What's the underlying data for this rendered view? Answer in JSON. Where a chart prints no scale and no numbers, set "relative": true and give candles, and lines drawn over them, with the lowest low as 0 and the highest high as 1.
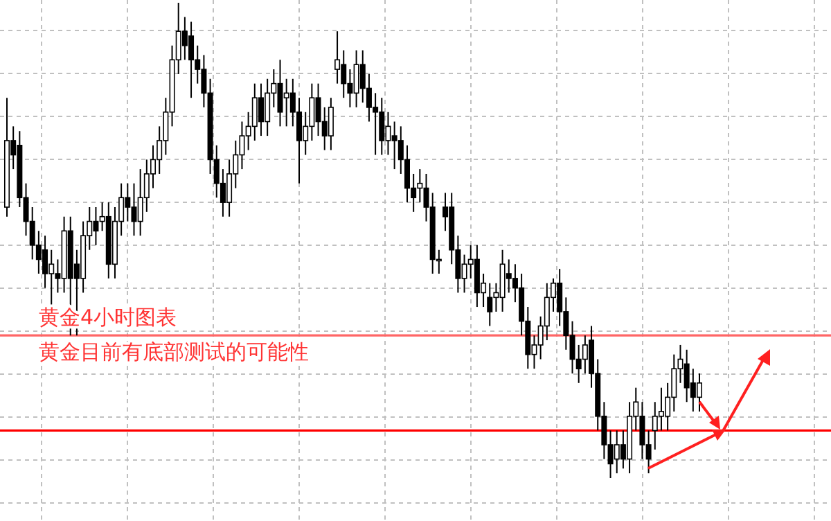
{
  "chart_data": {
    "type": "candlestick",
    "relative": true,
    "grid": true,
    "annotations": [
      "黄金4小时图表",
      "黄金目前有底部测试的可能性"
    ],
    "ref_lines": [
      {
        "axis": "y",
        "value": 0.1,
        "color": "#ff0000"
      },
      {
        "axis": "y",
        "value": 0.3,
        "color": "#ff6666"
      }
    ],
    "categories": [
      null,
      null,
      null,
      null,
      null,
      null,
      null,
      null,
      null,
      null,
      null,
      null,
      null,
      null,
      null,
      null,
      null,
      null,
      null,
      null,
      null,
      null,
      null,
      null,
      null,
      null,
      null,
      null,
      null,
      null,
      null,
      null,
      null,
      null,
      null,
      null,
      null,
      null,
      null,
      null,
      null,
      null,
      null,
      null,
      null,
      null,
      null,
      null,
      null,
      null,
      null,
      null,
      null,
      null,
      null,
      null,
      null,
      null,
      null,
      null,
      null,
      null,
      null,
      null,
      null,
      null,
      null,
      null,
      null,
      null,
      null,
      null,
      null,
      null,
      null,
      null,
      null,
      null,
      null,
      null,
      null,
      null,
      null,
      null,
      null,
      null,
      null,
      null,
      null,
      null,
      null,
      null,
      null,
      null,
      null,
      null,
      null,
      null,
      null,
      null,
      null,
      null,
      null,
      null,
      null,
      null,
      null,
      null,
      null,
      null
    ],
    "ohlc": [
      [
        0.57,
        0.8,
        0.55,
        0.71
      ],
      [
        0.71,
        0.74,
        0.65,
        0.68
      ],
      [
        0.7,
        0.73,
        0.57,
        0.59
      ],
      [
        0.59,
        0.62,
        0.51,
        0.54
      ],
      [
        0.54,
        0.57,
        0.46,
        0.49
      ],
      [
        0.49,
        0.52,
        0.43,
        0.46
      ],
      [
        0.48,
        0.51,
        0.4,
        0.43
      ],
      [
        0.43,
        0.48,
        0.36,
        0.45
      ],
      [
        0.43,
        0.46,
        0.39,
        0.42
      ],
      [
        0.42,
        0.55,
        0.39,
        0.52
      ],
      [
        0.52,
        0.55,
        0.3,
        0.42
      ],
      [
        0.45,
        0.48,
        0.3,
        0.42
      ],
      [
        0.42,
        0.54,
        0.39,
        0.51
      ],
      [
        0.51,
        0.57,
        0.48,
        0.54
      ],
      [
        0.54,
        0.57,
        0.49,
        0.52
      ],
      [
        0.54,
        0.58,
        0.52,
        0.55
      ],
      [
        0.55,
        0.58,
        0.42,
        0.45
      ],
      [
        0.45,
        0.57,
        0.42,
        0.54
      ],
      [
        0.54,
        0.62,
        0.51,
        0.59
      ],
      [
        0.59,
        0.62,
        0.54,
        0.57
      ],
      [
        0.57,
        0.62,
        0.51,
        0.54
      ],
      [
        0.54,
        0.65,
        0.51,
        0.59
      ],
      [
        0.59,
        0.67,
        0.56,
        0.64
      ],
      [
        0.64,
        0.7,
        0.61,
        0.67
      ],
      [
        0.67,
        0.74,
        0.64,
        0.71
      ],
      [
        0.71,
        0.8,
        0.68,
        0.77
      ],
      [
        0.77,
        0.91,
        0.74,
        0.88
      ],
      [
        0.88,
        1,
        0.85,
        0.94
      ],
      [
        0.94,
        0.97,
        0.88,
        0.91
      ],
      [
        0.93,
        0.96,
        0.8,
        0.88
      ],
      [
        0.88,
        0.91,
        0.83,
        0.86
      ],
      [
        0.86,
        0.89,
        0.78,
        0.81
      ],
      [
        0.81,
        0.84,
        0.64,
        0.67
      ],
      [
        0.67,
        0.7,
        0.59,
        0.62
      ],
      [
        0.62,
        0.65,
        0.55,
        0.58
      ],
      [
        0.58,
        0.67,
        0.55,
        0.64
      ],
      [
        0.64,
        0.71,
        0.61,
        0.68
      ],
      [
        0.68,
        0.75,
        0.65,
        0.72
      ],
      [
        0.72,
        0.77,
        0.69,
        0.74
      ],
      [
        0.74,
        0.83,
        0.71,
        0.8
      ],
      [
        0.8,
        0.83,
        0.72,
        0.75
      ],
      [
        0.75,
        0.84,
        0.72,
        0.81
      ],
      [
        0.81,
        0.86,
        0.78,
        0.83
      ],
      [
        0.83,
        0.88,
        0.74,
        0.77
      ],
      [
        0.8,
        0.84,
        0.74,
        0.81
      ],
      [
        0.81,
        0.84,
        0.74,
        0.77
      ],
      [
        0.77,
        0.8,
        0.62,
        0.71
      ],
      [
        0.71,
        0.77,
        0.68,
        0.74
      ],
      [
        0.74,
        0.83,
        0.71,
        0.8
      ],
      [
        0.8,
        0.83,
        0.72,
        0.75
      ],
      [
        0.75,
        0.78,
        0.69,
        0.72
      ],
      [
        0.72,
        0.8,
        0.69,
        0.78
      ],
      [
        0.86,
        0.94,
        0.83,
        0.88
      ],
      [
        0.87,
        0.9,
        0.8,
        0.83
      ],
      [
        0.83,
        0.86,
        0.78,
        0.81
      ],
      [
        0.81,
        0.9,
        0.78,
        0.87
      ],
      [
        0.87,
        0.9,
        0.79,
        0.82
      ],
      [
        0.82,
        0.85,
        0.75,
        0.78
      ],
      [
        0.78,
        0.81,
        0.68,
        0.77
      ],
      [
        0.77,
        0.8,
        0.68,
        0.71
      ],
      [
        0.71,
        0.77,
        0.68,
        0.74
      ],
      [
        0.72,
        0.75,
        0.65,
        0.71
      ],
      [
        0.71,
        0.74,
        0.64,
        0.67
      ],
      [
        0.67,
        0.7,
        0.58,
        0.61
      ],
      [
        0.61,
        0.64,
        0.56,
        0.59
      ],
      [
        0.61,
        0.65,
        0.58,
        0.62
      ],
      [
        0.61,
        0.64,
        0.54,
        0.57
      ],
      [
        0.57,
        0.6,
        0.43,
        0.46
      ],
      [
        0.46,
        0.48,
        0.43,
        0.46
      ],
      [
        0.57,
        0.6,
        0.52,
        0.55
      ],
      [
        0.57,
        0.6,
        0.45,
        0.48
      ],
      [
        0.48,
        0.51,
        0.39,
        0.42
      ],
      [
        0.42,
        0.47,
        0.39,
        0.45
      ],
      [
        0.45,
        0.49,
        0.42,
        0.46
      ],
      [
        0.46,
        0.49,
        0.36,
        0.39
      ],
      [
        0.39,
        0.43,
        0.36,
        0.41
      ],
      [
        0.38,
        0.41,
        0.32,
        0.35
      ],
      [
        0.38,
        0.41,
        0.35,
        0.39
      ],
      [
        0.38,
        0.48,
        0.35,
        0.45
      ],
      [
        0.43,
        0.46,
        0.39,
        0.42
      ],
      [
        0.42,
        0.45,
        0.37,
        0.4
      ],
      [
        0.4,
        0.43,
        0.3,
        0.33
      ],
      [
        0.33,
        0.36,
        0.23,
        0.26
      ],
      [
        0.26,
        0.3,
        0.23,
        0.28
      ],
      [
        0.28,
        0.34,
        0.25,
        0.32
      ],
      [
        0.32,
        0.41,
        0.29,
        0.38
      ],
      [
        0.38,
        0.42,
        0.35,
        0.41
      ],
      [
        0.41,
        0.44,
        0.32,
        0.35
      ],
      [
        0.35,
        0.38,
        0.27,
        0.3
      ],
      [
        0.3,
        0.33,
        0.22,
        0.25
      ],
      [
        0.25,
        0.28,
        0.2,
        0.23
      ],
      [
        0.25,
        0.3,
        0.22,
        0.28
      ],
      [
        0.29,
        0.32,
        0.19,
        0.22
      ],
      [
        0.22,
        0.25,
        0.1,
        0.13
      ],
      [
        0.13,
        0.16,
        0.04,
        0.07
      ],
      [
        0.07,
        0.1,
        0,
        0.03
      ],
      [
        0.04,
        0.1,
        0.01,
        0.07
      ],
      [
        0.07,
        0.1,
        0.02,
        0.04
      ],
      [
        0.04,
        0.16,
        0.01,
        0.13
      ],
      [
        0.13,
        0.19,
        0.1,
        0.16
      ],
      [
        0.13,
        0.16,
        0.04,
        0.07
      ],
      [
        0.07,
        0.1,
        0.01,
        0.04
      ],
      [
        0.1,
        0.16,
        0.06,
        0.13
      ],
      [
        0.13,
        0.19,
        0.1,
        0.14
      ],
      [
        0.13,
        0.2,
        0.1,
        0.17
      ],
      [
        0.17,
        0.26,
        0.14,
        0.23
      ],
      [
        0.23,
        0.28,
        0.2,
        0.25
      ],
      [
        0.24,
        0.27,
        0.16,
        0.19
      ],
      [
        0.2,
        0.23,
        0.14,
        0.17
      ],
      [
        0.17,
        0.22,
        0.14,
        0.2
      ]
    ]
  }
}
